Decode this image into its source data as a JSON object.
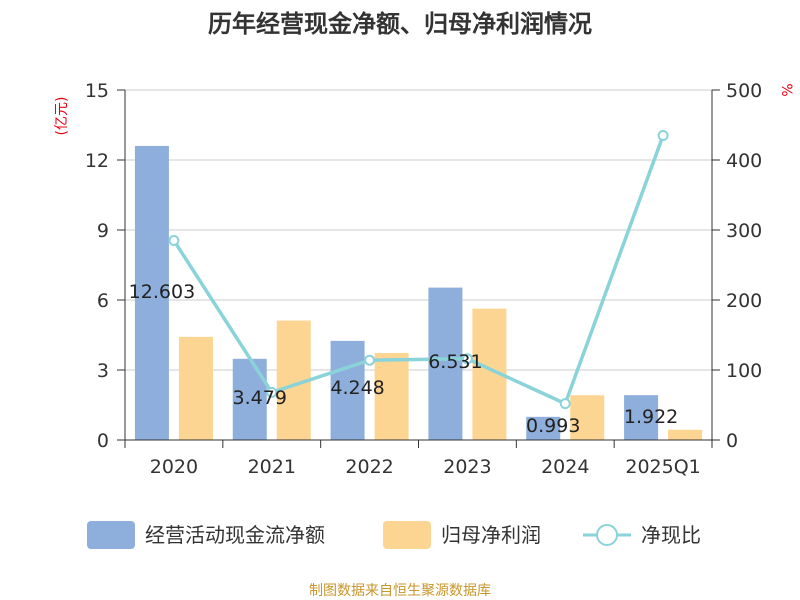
{
  "title": "历年经营现金净额、归母净利润情况",
  "left_unit": "(亿元)",
  "right_unit": "%",
  "source": "制图数据来自恒生聚源数据库",
  "colors": {
    "operating_cash": "#8eaedb",
    "net_profit": "#fdd592",
    "ratio_line": "#8ad3d9",
    "axis": "#333333",
    "grid": "#cccccc",
    "unit": "#e60012",
    "source": "#c8962a"
  },
  "chart_data": {
    "type": "bar",
    "categories": [
      "2020",
      "2021",
      "2022",
      "2023",
      "2024",
      "2025Q1"
    ],
    "series": [
      {
        "name": "经营活动现金流净额",
        "kind": "bar",
        "axis": "left",
        "values": [
          12.603,
          3.479,
          4.248,
          6.531,
          0.993,
          1.922
        ],
        "labels": [
          "12.603",
          "3.479",
          "4.248",
          "6.531",
          "0.993",
          "1.922"
        ]
      },
      {
        "name": "归母净利润",
        "kind": "bar",
        "axis": "left",
        "values": [
          4.42,
          5.12,
          3.73,
          5.63,
          1.92,
          0.44
        ]
      },
      {
        "name": "净现比",
        "kind": "line",
        "axis": "right",
        "values": [
          285,
          68,
          114,
          116,
          52,
          435
        ]
      }
    ],
    "left_axis": {
      "ylim": [
        0,
        15
      ],
      "ticks": [
        0,
        3,
        6,
        9,
        12,
        15
      ]
    },
    "right_axis": {
      "ylim": [
        0,
        500
      ],
      "ticks": [
        0,
        100,
        200,
        300,
        400,
        500
      ]
    },
    "grid": true,
    "legend_position": "bottom"
  }
}
